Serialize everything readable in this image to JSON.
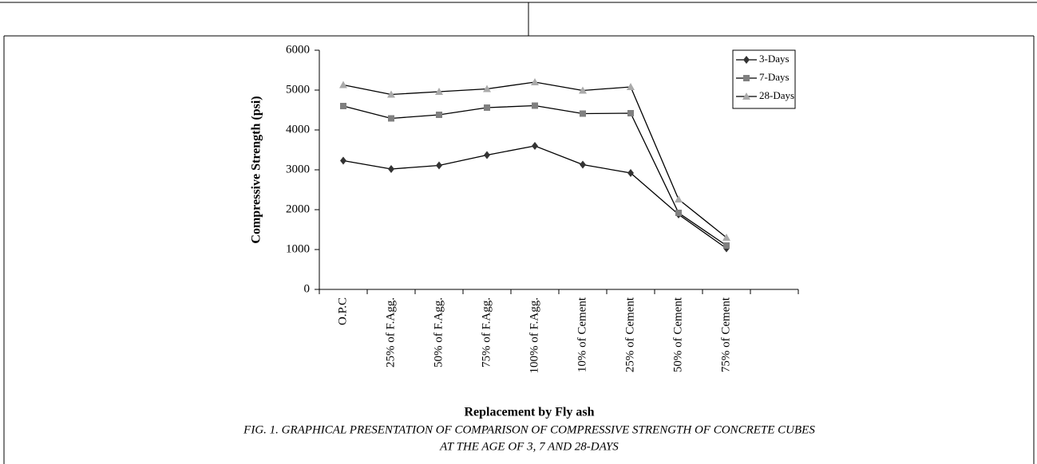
{
  "chart_data": {
    "type": "line",
    "y_label": "Compressive Strength (psi)",
    "x_label": "Replacement by Fly ash",
    "caption": [
      "FIG. 1. GRAPHICAL PRESENTATION OF COMPARISON OF COMPRESSIVE STRENGTH OF CONCRETE CUBES",
      "AT THE AGE OF 3, 7 AND 28-DAYS"
    ],
    "categories": [
      "O.P.C",
      "25% of F.Agg.",
      "50% of F.Agg.",
      "75% of F.Agg.",
      "100% of F.Agg.",
      "10% of Cement",
      "25% of Cement",
      "50% of Cement",
      "75% of Cement"
    ],
    "series": [
      {
        "name": "3-Days",
        "color": "#333333",
        "marker": "diamond",
        "values": [
          3230,
          3020,
          3110,
          3370,
          3600,
          3130,
          2920,
          1880,
          1030
        ]
      },
      {
        "name": "7-Days",
        "color": "#808080",
        "marker": "square",
        "values": [
          4600,
          4290,
          4380,
          4560,
          4610,
          4410,
          4420,
          1920,
          1100
        ]
      },
      {
        "name": "28-Days",
        "color": "#aaaaaa",
        "marker": "triangle",
        "values": [
          5130,
          4890,
          4960,
          5030,
          5200,
          4990,
          5080,
          2260,
          1300
        ]
      }
    ],
    "ylim": [
      0,
      6000
    ],
    "yticks": [
      0,
      1000,
      2000,
      3000,
      4000,
      5000,
      6000
    ],
    "legend": "top-right",
    "grid": false
  }
}
